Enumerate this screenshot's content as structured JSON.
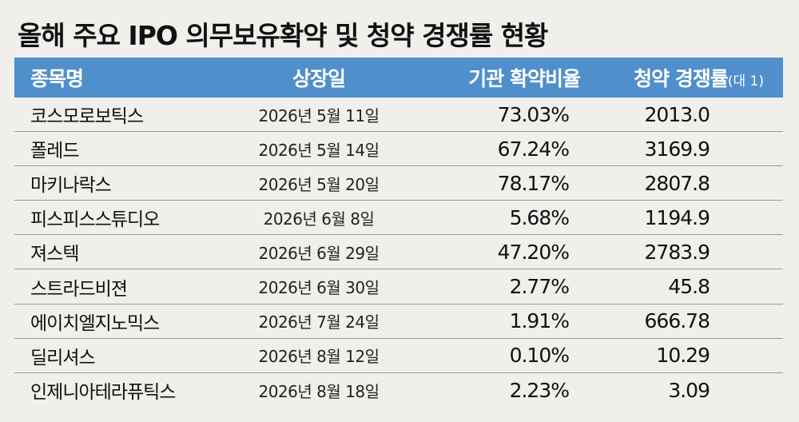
{
  "title": "올해 주요 IPO 의무보유확약 및 청약 경쟁률 현황",
  "header": {
    "col1": "종목명",
    "col2": "상장일",
    "col3": "기관 확약비율",
    "col4": "청약 경쟁률",
    "col4_unit": "(대 1)"
  },
  "colors": {
    "header_bg": "#4f8fcb",
    "page_bg": "#f1efec"
  },
  "rows": [
    {
      "name": "코스모로보틱스",
      "date": "2026년 5월 11일",
      "ratio": "73.03%",
      "competition": "2013.0"
    },
    {
      "name": "폴레드",
      "date": "2026년 5월 14일",
      "ratio": "67.24%",
      "competition": "3169.9"
    },
    {
      "name": "마키나락스",
      "date": "2026년 5월 20일",
      "ratio": "78.17%",
      "competition": "2807.8"
    },
    {
      "name": "피스피스스튜디오",
      "date": "2026년 6월 8일",
      "ratio": "5.68%",
      "competition": "1194.9"
    },
    {
      "name": "져스텍",
      "date": "2026년 6월 29일",
      "ratio": "47.20%",
      "competition": "2783.9"
    },
    {
      "name": "스트라드비젼",
      "date": "2026년 6월 30일",
      "ratio": "2.77%",
      "competition": "45.8"
    },
    {
      "name": "에이치엘지노믹스",
      "date": "2026년 7월 24일",
      "ratio": "1.91%",
      "competition": "666.78"
    },
    {
      "name": "딜리셔스",
      "date": "2026년 8월 12일",
      "ratio": "0.10%",
      "competition": "10.29"
    },
    {
      "name": "인제니아테라퓨틱스",
      "date": "2026년 8월 18일",
      "ratio": "2.23%",
      "competition": "3.09"
    }
  ]
}
